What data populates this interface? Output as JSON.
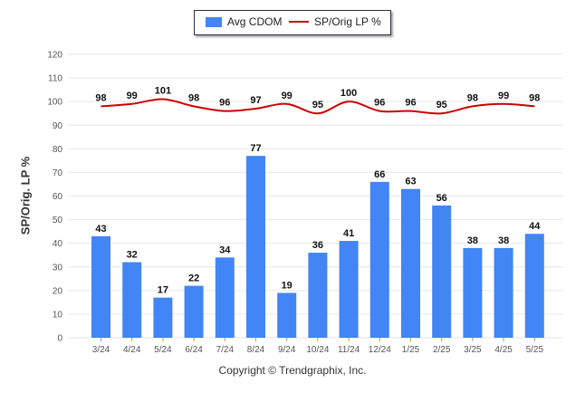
{
  "legend": {
    "bar_label": "Avg CDOM",
    "line_label": "SP/Orig LP %"
  },
  "copyright": "Copyright © Trendgraphix, Inc.",
  "colors": {
    "bar": "#4285f4",
    "line": "#cc0000",
    "grid": "#e6e6e6",
    "axis_text": "#555555"
  },
  "chart_data": {
    "type": "bar",
    "categories": [
      "3/24",
      "4/24",
      "5/24",
      "6/24",
      "7/24",
      "8/24",
      "9/24",
      "10/24",
      "11/24",
      "12/24",
      "1/25",
      "2/25",
      "3/25",
      "4/25",
      "5/25"
    ],
    "series": [
      {
        "name": "Avg CDOM",
        "type": "bar",
        "values": [
          43,
          32,
          17,
          22,
          34,
          77,
          19,
          36,
          41,
          66,
          63,
          56,
          38,
          38,
          44
        ]
      },
      {
        "name": "SP/Orig LP %",
        "type": "line",
        "values": [
          98,
          99,
          101,
          98,
          96,
          97,
          99,
          95,
          100,
          96,
          96,
          95,
          98,
          99,
          98
        ]
      }
    ],
    "ylabel": "SP/Orig. LP %",
    "ylim": [
      0,
      120
    ],
    "yticks": [
      0,
      10,
      20,
      30,
      40,
      50,
      60,
      70,
      80,
      90,
      100,
      110,
      120
    ],
    "grid": true,
    "legend_position": "top-center",
    "data_labels": true
  }
}
